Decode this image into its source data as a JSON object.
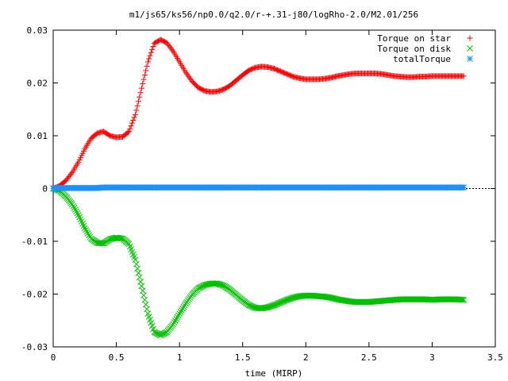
{
  "chart_data": {
    "type": "scatter",
    "title": "m1/js65/ks56/np0.0/q2.0/r-+.31-j80/logRho-2.0/M2.01/256",
    "xlabel": "time (MIRP)",
    "ylabel": "",
    "xlim": [
      0,
      3.5
    ],
    "ylim": [
      -0.03,
      0.03
    ],
    "xticks": [
      0,
      0.5,
      1,
      1.5,
      2,
      2.5,
      3,
      3.5
    ],
    "xtick_labels": [
      "0",
      "0.5",
      "1",
      "1.5",
      "2",
      "2.5",
      "3",
      "3.5"
    ],
    "yticks": [
      -0.03,
      -0.02,
      -0.01,
      0,
      0.01,
      0.02,
      0.03
    ],
    "ytick_labels": [
      "-0.03",
      "-0.02",
      "-0.01",
      "0",
      "0.01",
      "0.02",
      "0.03"
    ],
    "grid": false,
    "legend_position": "top-right",
    "series": [
      {
        "name": "Torque on star",
        "marker": "plus",
        "color": "#ff0000",
        "x": [
          0,
          0.05,
          0.1,
          0.15,
          0.2,
          0.25,
          0.3,
          0.35,
          0.4,
          0.45,
          0.5,
          0.55,
          0.6,
          0.65,
          0.7,
          0.75,
          0.8,
          0.85,
          0.9,
          0.95,
          1.0,
          1.05,
          1.1,
          1.15,
          1.2,
          1.25,
          1.3,
          1.35,
          1.4,
          1.45,
          1.5,
          1.55,
          1.6,
          1.65,
          1.7,
          1.75,
          1.8,
          1.85,
          1.9,
          1.95,
          2.0,
          2.05,
          2.1,
          2.15,
          2.2,
          2.25,
          2.3,
          2.35,
          2.4,
          2.45,
          2.5,
          2.55,
          2.6,
          2.65,
          2.7,
          2.75,
          2.8,
          2.85,
          2.9,
          2.95,
          3.0,
          3.05,
          3.1,
          3.15,
          3.2,
          3.25
        ],
        "y": [
          0,
          0.0005,
          0.0015,
          0.003,
          0.005,
          0.0075,
          0.0095,
          0.0105,
          0.0108,
          0.01,
          0.0097,
          0.0098,
          0.0108,
          0.014,
          0.019,
          0.024,
          0.0275,
          0.0282,
          0.0276,
          0.026,
          0.024,
          0.022,
          0.0203,
          0.0191,
          0.0185,
          0.0183,
          0.0184,
          0.0188,
          0.0195,
          0.0205,
          0.0215,
          0.0224,
          0.0229,
          0.0231,
          0.023,
          0.0227,
          0.0222,
          0.0217,
          0.0212,
          0.0209,
          0.0207,
          0.0207,
          0.0207,
          0.0208,
          0.021,
          0.0213,
          0.0215,
          0.0217,
          0.0218,
          0.0218,
          0.0218,
          0.0218,
          0.0217,
          0.0215,
          0.0213,
          0.0212,
          0.0211,
          0.0211,
          0.0212,
          0.0212,
          0.0213,
          0.0213,
          0.0213,
          0.0213,
          0.0213,
          0.0213
        ]
      },
      {
        "name": "Torque on disk",
        "marker": "cross",
        "color": "#00c000",
        "x": [
          0,
          0.05,
          0.1,
          0.15,
          0.2,
          0.25,
          0.3,
          0.35,
          0.4,
          0.45,
          0.5,
          0.55,
          0.6,
          0.65,
          0.7,
          0.75,
          0.8,
          0.85,
          0.9,
          0.95,
          1.0,
          1.05,
          1.1,
          1.15,
          1.2,
          1.25,
          1.3,
          1.35,
          1.4,
          1.45,
          1.5,
          1.55,
          1.6,
          1.65,
          1.7,
          1.75,
          1.8,
          1.85,
          1.9,
          1.95,
          2.0,
          2.05,
          2.1,
          2.15,
          2.2,
          2.25,
          2.3,
          2.35,
          2.4,
          2.45,
          2.5,
          2.55,
          2.6,
          2.65,
          2.7,
          2.75,
          2.8,
          2.85,
          2.9,
          2.95,
          3.0,
          3.05,
          3.1,
          3.15,
          3.2,
          3.25
        ],
        "y": [
          0,
          -0.0004,
          -0.0015,
          -0.003,
          -0.005,
          -0.0075,
          -0.0095,
          -0.0103,
          -0.0104,
          -0.0096,
          -0.0093,
          -0.0095,
          -0.0105,
          -0.0135,
          -0.0185,
          -0.0237,
          -0.0272,
          -0.0278,
          -0.0272,
          -0.0257,
          -0.0237,
          -0.0218,
          -0.0201,
          -0.0189,
          -0.0183,
          -0.018,
          -0.018,
          -0.0184,
          -0.0192,
          -0.0202,
          -0.0212,
          -0.0221,
          -0.0226,
          -0.0227,
          -0.0225,
          -0.0221,
          -0.0216,
          -0.0211,
          -0.0207,
          -0.0204,
          -0.0203,
          -0.0203,
          -0.0204,
          -0.0205,
          -0.0207,
          -0.021,
          -0.0212,
          -0.0214,
          -0.0215,
          -0.0215,
          -0.0215,
          -0.0214,
          -0.0213,
          -0.0212,
          -0.0211,
          -0.021,
          -0.021,
          -0.021,
          -0.021,
          -0.021,
          -0.0211,
          -0.021,
          -0.021,
          -0.021,
          -0.021,
          -0.0211
        ]
      },
      {
        "name": "totalTorque",
        "marker": "star",
        "color": "#1e90ff",
        "x": [
          0,
          0.05,
          0.1,
          0.15,
          0.2,
          0.25,
          0.3,
          0.35,
          0.4,
          0.45,
          0.5,
          0.55,
          0.6,
          0.65,
          0.7,
          0.75,
          0.8,
          0.85,
          0.9,
          0.95,
          1.0,
          1.05,
          1.1,
          1.15,
          1.2,
          1.25,
          1.3,
          1.35,
          1.4,
          1.45,
          1.5,
          1.55,
          1.6,
          1.65,
          1.7,
          1.75,
          1.8,
          1.85,
          1.9,
          1.95,
          2.0,
          2.05,
          2.1,
          2.15,
          2.2,
          2.25,
          2.3,
          2.35,
          2.4,
          2.45,
          2.5,
          2.55,
          2.6,
          2.65,
          2.7,
          2.75,
          2.8,
          2.85,
          2.9,
          2.95,
          3.0,
          3.05,
          3.1,
          3.15,
          3.2,
          3.25
        ],
        "y": [
          0,
          0.0001,
          0.0001,
          0.0001,
          0.0001,
          0.0001,
          0.0001,
          0.0001,
          0.0002,
          0.0002,
          0.0002,
          0.0002,
          0.0002,
          0.0002,
          0.0002,
          0.0002,
          0.0002,
          0.0002,
          0.0002,
          0.0002,
          0.0002,
          0.0002,
          0.0002,
          0.0002,
          0.0002,
          0.0002,
          0.0002,
          0.0002,
          0.0002,
          0.0002,
          0.0002,
          0.0002,
          0.0002,
          0.0002,
          0.0002,
          0.0002,
          0.0002,
          0.0002,
          0.0002,
          0.0002,
          0.0002,
          0.0002,
          0.0002,
          0.0002,
          0.0002,
          0.0002,
          0.0002,
          0.0002,
          0.0002,
          0.0002,
          0.0002,
          0.0002,
          0.0002,
          0.0002,
          0.0002,
          0.0002,
          0.0002,
          0.0002,
          0.0002,
          0.0002,
          0.0002,
          0.0002,
          0.0002,
          0.0002,
          0.0002,
          0.0002
        ]
      }
    ]
  }
}
